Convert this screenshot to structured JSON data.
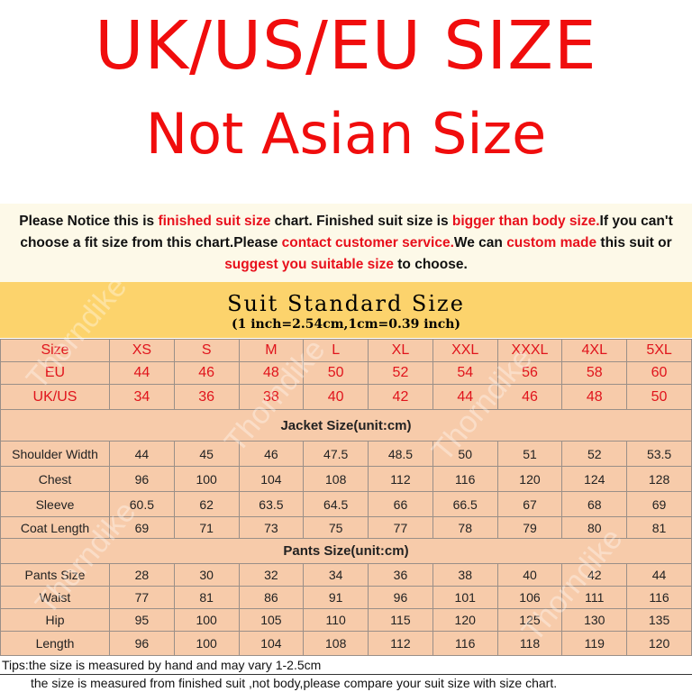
{
  "headline": "UK/US/EU SIZE",
  "subheadline": "Not Asian Size",
  "notice": [
    {
      "t": "Please Notice this is ",
      "red": false
    },
    {
      "t": "finished suit size",
      "red": true
    },
    {
      "t": " chart. Finished suit size is ",
      "red": false
    },
    {
      "t": "bigger than body size.",
      "red": true
    },
    {
      "t": "If you can't choose a fit size from this chart.Please ",
      "red": false
    },
    {
      "t": "contact customer service.",
      "red": true
    },
    {
      "t": "We can ",
      "red": false
    },
    {
      "t": "custom made",
      "red": true
    },
    {
      "t": " this suit or ",
      "red": false
    },
    {
      "t": "suggest you suitable size",
      "red": true
    },
    {
      "t": " to choose.",
      "red": false
    }
  ],
  "band": {
    "title": "Suit Standard Size",
    "subtitle": "(1 inch=2.54cm,1cm=0.39 inch)"
  },
  "size_rows": [
    [
      "Size",
      "XS",
      "S",
      "M",
      "L",
      "XL",
      "XXL",
      "XXXL",
      "4XL",
      "5XL"
    ],
    [
      "EU",
      "44",
      "46",
      "48",
      "50",
      "52",
      "54",
      "56",
      "58",
      "60"
    ],
    [
      "UK/US",
      "34",
      "36",
      "38",
      "40",
      "42",
      "44",
      "46",
      "48",
      "50"
    ]
  ],
  "jacket": {
    "title": "Jacket Size(unit:cm)",
    "rows": [
      [
        "Shoulder Width",
        "44",
        "45",
        "46",
        "47.5",
        "48.5",
        "50",
        "51",
        "52",
        "53.5"
      ],
      [
        "Chest",
        "96",
        "100",
        "104",
        "108",
        "112",
        "116",
        "120",
        "124",
        "128"
      ],
      [
        "Sleeve",
        "60.5",
        "62",
        "63.5",
        "64.5",
        "66",
        "66.5",
        "67",
        "68",
        "69"
      ],
      [
        "Coat Length",
        "69",
        "71",
        "73",
        "75",
        "77",
        "78",
        "79",
        "80",
        "81"
      ]
    ]
  },
  "pants": {
    "title": "Pants Size(unit:cm)",
    "rows": [
      [
        "Pants Size",
        "28",
        "30",
        "32",
        "34",
        "36",
        "38",
        "40",
        "42",
        "44"
      ],
      [
        "Waist",
        "77",
        "81",
        "86",
        "91",
        "96",
        "101",
        "106",
        "111",
        "116"
      ],
      [
        "Hip",
        "95",
        "100",
        "105",
        "110",
        "115",
        "120",
        "125",
        "130",
        "135"
      ],
      [
        "Length",
        "96",
        "100",
        "104",
        "108",
        "112",
        "116",
        "118",
        "119",
        "120"
      ]
    ]
  },
  "tips": [
    "Tips:the size is measured by hand and may vary 1-2.5cm",
    "the size is measured from finished suit ,not body,please compare your suit size with size chart."
  ],
  "watermark": "Thorndike",
  "colors": {
    "red": "#f00d0d",
    "band": "#fcd36c",
    "table": "#f7cbaa"
  }
}
